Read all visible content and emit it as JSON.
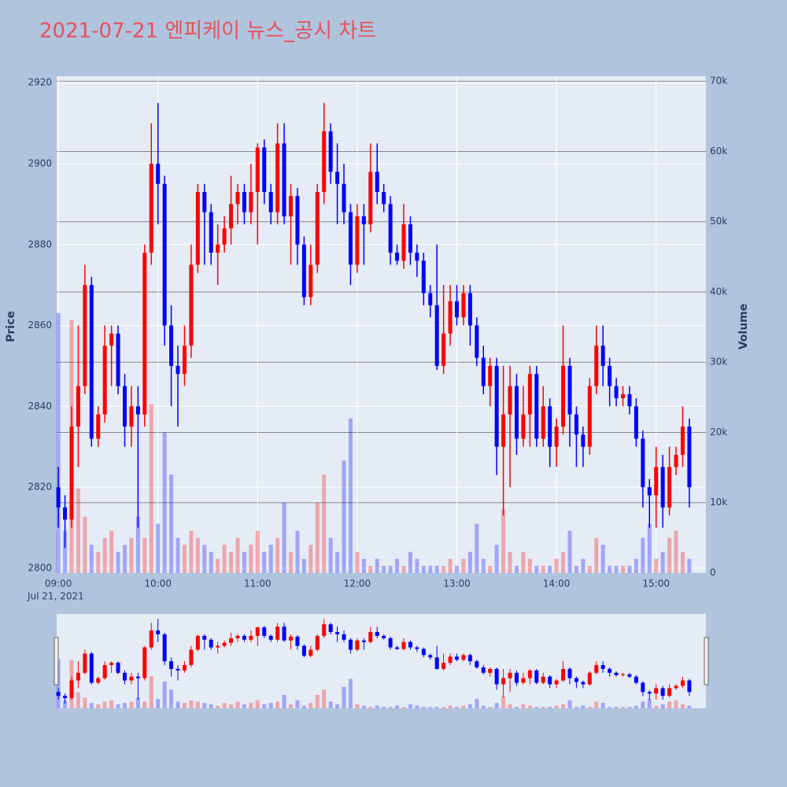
{
  "chart_data": {
    "type": "candlestick",
    "title": "2021-07-21 엔피케이 뉴스_공시 차트",
    "y_label": "Price",
    "y2_label": "Volume",
    "x_date_label": "Jul 21, 2021",
    "increasing_color": "#ff0000",
    "decreasing_color": "#0000ff",
    "volume_opacity": 0.3,
    "x": [
      "09:00",
      "09:04",
      "09:08",
      "09:12",
      "09:16",
      "09:20",
      "09:24",
      "09:28",
      "09:32",
      "09:36",
      "09:40",
      "09:44",
      "09:48",
      "09:52",
      "09:56",
      "10:00",
      "10:04",
      "10:08",
      "10:12",
      "10:16",
      "10:20",
      "10:24",
      "10:28",
      "10:32",
      "10:36",
      "10:40",
      "10:44",
      "10:48",
      "10:52",
      "10:56",
      "11:00",
      "11:04",
      "11:08",
      "11:12",
      "11:16",
      "11:20",
      "11:24",
      "11:28",
      "11:32",
      "11:36",
      "11:40",
      "11:44",
      "11:48",
      "11:52",
      "11:56",
      "12:00",
      "12:04",
      "12:08",
      "12:12",
      "12:16",
      "12:20",
      "12:24",
      "12:28",
      "12:32",
      "12:36",
      "12:40",
      "12:44",
      "12:48",
      "12:52",
      "12:56",
      "13:00",
      "13:04",
      "13:08",
      "13:12",
      "13:16",
      "13:20",
      "13:24",
      "13:28",
      "13:32",
      "13:36",
      "13:40",
      "13:44",
      "13:48",
      "13:52",
      "13:56",
      "14:00",
      "14:04",
      "14:08",
      "14:12",
      "14:16",
      "14:20",
      "14:24",
      "14:28",
      "14:32",
      "14:36",
      "14:40",
      "14:44",
      "14:48",
      "14:52",
      "14:56",
      "15:00",
      "15:04",
      "15:08",
      "15:12",
      "15:16",
      "15:20"
    ],
    "open": [
      2820,
      2815,
      2812,
      2835,
      2845,
      2870,
      2832,
      2838,
      2855,
      2858,
      2845,
      2835,
      2840,
      2838,
      2878,
      2900,
      2895,
      2860,
      2850,
      2848,
      2855,
      2875,
      2893,
      2888,
      2878,
      2880,
      2884,
      2890,
      2893,
      2888,
      2893,
      2904,
      2893,
      2888,
      2905,
      2887,
      2892,
      2880,
      2867,
      2875,
      2893,
      2908,
      2898,
      2895,
      2888,
      2875,
      2887,
      2885,
      2898,
      2893,
      2890,
      2878,
      2876,
      2885,
      2878,
      2876,
      2868,
      2865,
      2850,
      2858,
      2866,
      2862,
      2868,
      2860,
      2852,
      2845,
      2850,
      2830,
      2838,
      2845,
      2832,
      2838,
      2848,
      2832,
      2840,
      2830,
      2835,
      2850,
      2838,
      2833,
      2830,
      2845,
      2855,
      2850,
      2845,
      2842,
      2843,
      2840,
      2832,
      2820,
      2818,
      2825,
      2815,
      2825,
      2828,
      2835
    ],
    "high": [
      2825,
      2818,
      2840,
      2860,
      2875,
      2872,
      2840,
      2860,
      2860,
      2860,
      2848,
      2845,
      2845,
      2880,
      2910,
      2915,
      2897,
      2865,
      2855,
      2860,
      2880,
      2895,
      2895,
      2890,
      2885,
      2887,
      2897,
      2895,
      2895,
      2900,
      2905,
      2906,
      2895,
      2910,
      2910,
      2895,
      2894,
      2882,
      2880,
      2895,
      2915,
      2910,
      2905,
      2900,
      2890,
      2890,
      2890,
      2905,
      2905,
      2895,
      2892,
      2880,
      2890,
      2887,
      2880,
      2878,
      2870,
      2880,
      2870,
      2870,
      2870,
      2870,
      2870,
      2862,
      2855,
      2852,
      2852,
      2850,
      2850,
      2848,
      2845,
      2850,
      2850,
      2845,
      2842,
      2837,
      2860,
      2852,
      2840,
      2835,
      2847,
      2860,
      2860,
      2852,
      2847,
      2845,
      2845,
      2842,
      2834,
      2822,
      2830,
      2828,
      2830,
      2830,
      2840,
      2837
    ],
    "low": [
      2810,
      2805,
      2810,
      2825,
      2843,
      2830,
      2830,
      2836,
      2845,
      2843,
      2830,
      2830,
      2810,
      2835,
      2875,
      2885,
      2855,
      2840,
      2835,
      2845,
      2852,
      2873,
      2875,
      2875,
      2870,
      2878,
      2880,
      2885,
      2885,
      2885,
      2880,
      2890,
      2885,
      2885,
      2885,
      2875,
      2875,
      2865,
      2865,
      2873,
      2890,
      2895,
      2885,
      2885,
      2870,
      2873,
      2875,
      2883,
      2890,
      2888,
      2875,
      2875,
      2874,
      2875,
      2872,
      2865,
      2862,
      2849,
      2848,
      2855,
      2860,
      2860,
      2855,
      2850,
      2843,
      2840,
      2823,
      2813,
      2820,
      2828,
      2830,
      2830,
      2830,
      2830,
      2825,
      2825,
      2833,
      2830,
      2825,
      2825,
      2828,
      2843,
      2845,
      2840,
      2840,
      2840,
      2838,
      2830,
      2815,
      2810,
      2810,
      2810,
      2813,
      2823,
      2825,
      2815
    ],
    "close": [
      2815,
      2812,
      2835,
      2845,
      2870,
      2832,
      2838,
      2855,
      2858,
      2845,
      2835,
      2840,
      2838,
      2878,
      2900,
      2895,
      2860,
      2850,
      2848,
      2855,
      2875,
      2893,
      2888,
      2878,
      2880,
      2884,
      2890,
      2893,
      2888,
      2893,
      2904,
      2893,
      2888,
      2905,
      2887,
      2892,
      2880,
      2867,
      2875,
      2893,
      2908,
      2898,
      2895,
      2888,
      2875,
      2887,
      2885,
      2898,
      2893,
      2890,
      2878,
      2876,
      2885,
      2878,
      2876,
      2868,
      2865,
      2850,
      2858,
      2866,
      2862,
      2868,
      2860,
      2852,
      2845,
      2850,
      2830,
      2838,
      2845,
      2832,
      2838,
      2848,
      2832,
      2840,
      2830,
      2835,
      2850,
      2838,
      2833,
      2830,
      2845,
      2855,
      2850,
      2845,
      2842,
      2843,
      2840,
      2832,
      2820,
      2818,
      2825,
      2815,
      2825,
      2828,
      2835,
      2820
    ],
    "volume": [
      37000,
      6000,
      36000,
      12000,
      8000,
      4000,
      3000,
      5000,
      6000,
      3000,
      4000,
      5000,
      8000,
      5000,
      24000,
      7000,
      20000,
      14000,
      5000,
      4000,
      6000,
      5000,
      4000,
      3000,
      2000,
      4000,
      3000,
      5000,
      3000,
      4000,
      6000,
      3000,
      4000,
      5000,
      10000,
      3000,
      6000,
      2000,
      4000,
      10000,
      14000,
      5000,
      3000,
      16000,
      22000,
      3000,
      2000,
      1000,
      2000,
      1000,
      1000,
      2000,
      1000,
      3000,
      2000,
      1000,
      1000,
      1000,
      1000,
      2000,
      1000,
      2000,
      3000,
      7000,
      2000,
      1000,
      4000,
      9000,
      3000,
      1000,
      3000,
      2000,
      1000,
      1000,
      1000,
      2000,
      3000,
      6000,
      1000,
      2000,
      1000,
      5000,
      4000,
      1000,
      1000,
      1000,
      1000,
      2000,
      5000,
      7000,
      2000,
      3000,
      5000,
      6000,
      3000,
      2000
    ],
    "xlim": [
      "08:59",
      "15:30"
    ],
    "xticks": [
      "09:00",
      "10:00",
      "11:00",
      "12:00",
      "13:00",
      "14:00",
      "15:00"
    ],
    "ylim": [
      2798.8,
      2921.6
    ],
    "yticks": [
      2800,
      2820,
      2840,
      2860,
      2880,
      2900,
      2920
    ],
    "y2lim": [
      0,
      70700
    ],
    "y2ticks": [
      0,
      {
        "value": 10000,
        "label": "10k"
      },
      {
        "value": 20000,
        "label": "20k"
      },
      {
        "value": 30000,
        "label": "30k"
      },
      {
        "value": 40000,
        "label": "40k"
      },
      {
        "value": 50000,
        "label": "50k"
      },
      {
        "value": 60000,
        "label": "60k"
      },
      {
        "value": 70000,
        "label": "70k"
      }
    ],
    "rangeslider": true
  }
}
